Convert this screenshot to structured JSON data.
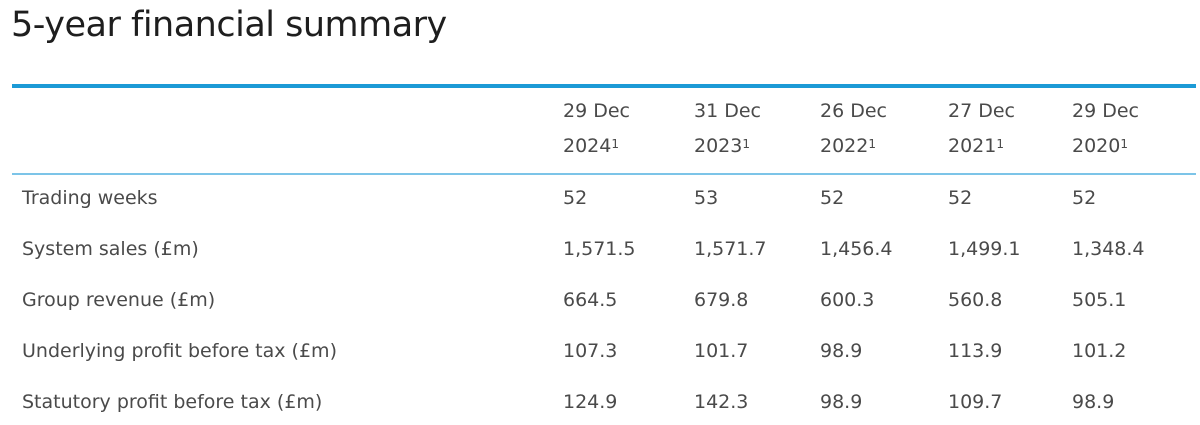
{
  "title": "5-year financial summary",
  "table": {
    "columns": [
      {
        "line1": "29 Dec",
        "line2": "2024",
        "footnote": "1"
      },
      {
        "line1": "31 Dec",
        "line2": "2023",
        "footnote": "1"
      },
      {
        "line1": "26 Dec",
        "line2": "2022",
        "footnote": "1"
      },
      {
        "line1": "27 Dec",
        "line2": "2021",
        "footnote": "1"
      },
      {
        "line1": "29 Dec",
        "line2": "2020",
        "footnote": "1"
      }
    ],
    "rows": [
      {
        "label": "Trading weeks",
        "values": [
          "52",
          "53",
          "52",
          "52",
          "52"
        ]
      },
      {
        "label": "System sales (£m)",
        "values": [
          "1,571.5",
          "1,571.7",
          "1,456.4",
          "1,499.1",
          "1,348.4"
        ]
      },
      {
        "label": "Group revenue (£m)",
        "values": [
          "664.5",
          "679.8",
          "600.3",
          "560.8",
          "505.1"
        ]
      },
      {
        "label": "Underlying profit before tax (£m)",
        "values": [
          "107.3",
          "101.7",
          "98.9",
          "113.9",
          "101.2"
        ]
      },
      {
        "label": "Statutory profit before tax (£m)",
        "values": [
          "124.9",
          "142.3",
          "98.9",
          "109.7",
          "98.9"
        ]
      }
    ]
  },
  "colors": {
    "accent": "#1c9ad6",
    "text": "#4a4a4a"
  }
}
